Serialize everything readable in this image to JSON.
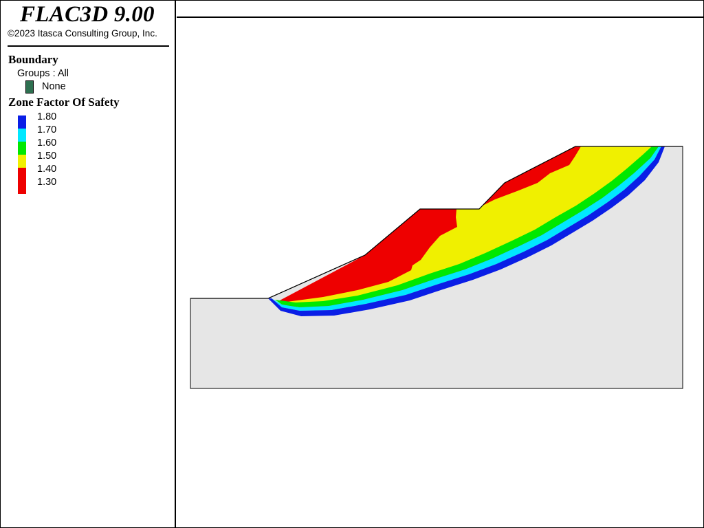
{
  "header": {
    "app_title": "FLAC3D 9.00",
    "copyright": "©2023 Itasca Consulting Group, Inc."
  },
  "legend": {
    "boundary": {
      "title": "Boundary",
      "groups_text": "Groups : All",
      "items": [
        {
          "label": "None",
          "color": "#2e7050"
        }
      ]
    },
    "fos": {
      "title": "Zone Factor Of Safety",
      "items": [
        {
          "label": "1.80",
          "color": "#0a1ee6",
          "icon": "blue-swatch-icon"
        },
        {
          "label": "1.70",
          "color": "#00e8ff",
          "icon": "cyan-swatch-icon"
        },
        {
          "label": "1.60",
          "color": "#00e800",
          "icon": "green-swatch-icon"
        },
        {
          "label": "1.50",
          "color": "#f0f000",
          "icon": "yellow-swatch-icon"
        },
        {
          "label": "1.40",
          "color": "#ee0000",
          "icon": "red-swatch-icon"
        },
        {
          "label": "1.30",
          "color": "#ee0000",
          "icon": "red-swatch-icon"
        }
      ]
    }
  },
  "model": {
    "background_color": "#e6e6e6",
    "outline_color": "#000000",
    "band_colors": {
      "red": "#ee0000",
      "yellow": "#f0f000",
      "green": "#00e800",
      "cyan": "#00e8ff",
      "blue": "#0a1ee6"
    }
  }
}
